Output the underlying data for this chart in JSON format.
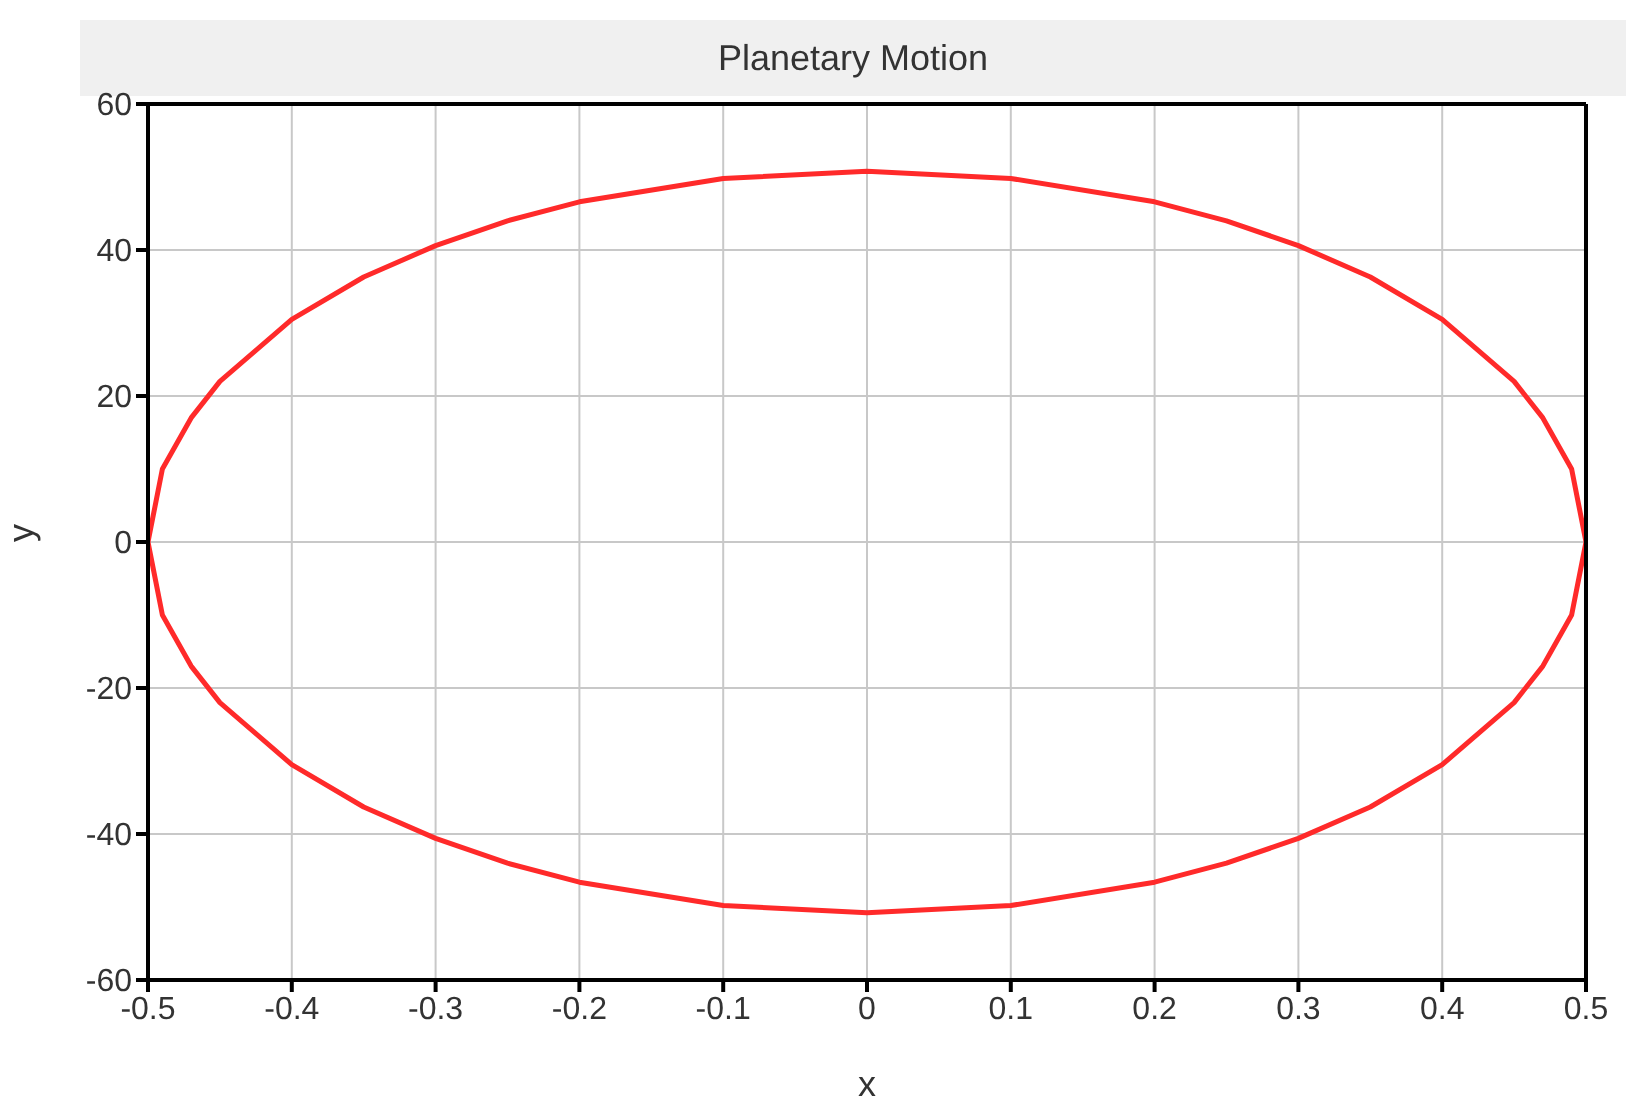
{
  "chart_data": {
    "type": "line",
    "title": "Planetary Motion",
    "xlabel": "x",
    "ylabel": "y",
    "series": [
      {
        "color": "#ff2a2a",
        "x": [
          -0.5,
          -0.49,
          -0.47,
          -0.45,
          -0.4,
          -0.35,
          -0.3,
          -0.25,
          -0.2,
          -0.1,
          0,
          0.1,
          0.2,
          0.25,
          0.3,
          0.35,
          0.4,
          0.45,
          0.47,
          0.49,
          0.5,
          null,
          -0.5,
          -0.49,
          -0.47,
          -0.45,
          -0.4,
          -0.35,
          -0.3,
          -0.25,
          -0.2,
          -0.1,
          0,
          0.1,
          0.2,
          0.25,
          0.3,
          0.35,
          0.4,
          0.45,
          0.47,
          0.49,
          0.5
        ],
        "values": [
          0,
          10,
          17,
          22,
          30.5,
          36.3,
          40.6,
          44,
          46.6,
          49.8,
          50.8,
          49.8,
          46.6,
          44,
          40.6,
          36.3,
          30.5,
          22,
          17,
          10,
          0,
          null,
          0,
          -10,
          -17,
          -22,
          -30.5,
          -36.3,
          -40.6,
          -44,
          -46.6,
          -49.8,
          -50.8,
          -49.8,
          -46.6,
          -44,
          -40.6,
          -36.3,
          -30.5,
          -22,
          -17,
          -10,
          0
        ]
      }
    ],
    "xlim": [
      -0.5,
      0.5
    ],
    "xticks": [
      -0.5,
      -0.4,
      -0.3,
      -0.2,
      -0.1,
      0,
      0.1,
      0.2,
      0.3,
      0.4,
      0.5
    ],
    "ylim": [
      -60,
      60
    ],
    "yticks": [
      -60,
      -40,
      -20,
      0,
      20,
      40,
      60
    ],
    "grid": true,
    "legend": false,
    "marker": "none",
    "line_style": "solid"
  }
}
